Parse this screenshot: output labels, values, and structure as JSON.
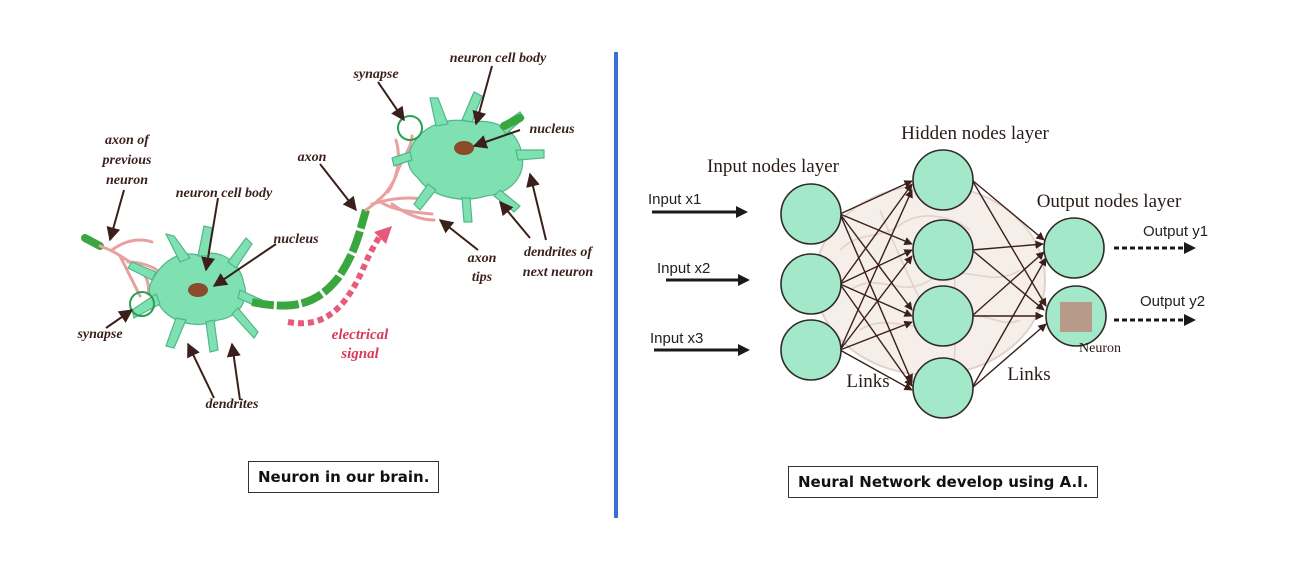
{
  "left_panel": {
    "caption": "Neuron in our brain.",
    "labels": {
      "axon_of_previous_1": "axon of",
      "axon_of_previous_2": "previous",
      "axon_of_previous_3": "neuron",
      "cell_body_left": "neuron cell body",
      "nucleus_left": "nucleus",
      "synapse_left": "synapse",
      "dendrites": "dendrites",
      "axon": "axon",
      "electrical_signal_1": "electrical",
      "electrical_signal_2": "signal",
      "synapse_top": "synapse",
      "cell_body_right": "neuron cell body",
      "nucleus_right": "nucleus",
      "axon_tips_1": "axon",
      "axon_tips_2": "tips",
      "dendrites_next_1": "dendrites of",
      "dendrites_next_2": "next neuron"
    }
  },
  "right_panel": {
    "caption": "Neural Network develop using A.I.",
    "layers": {
      "input": "Input nodes layer",
      "hidden": "Hidden nodes layer",
      "output": "Output nodes layer"
    },
    "inputs": [
      "Input x1",
      "Input x2",
      "Input x3"
    ],
    "outputs": [
      "Output y1",
      "Output y2"
    ],
    "links_left": "Links",
    "links_right": "Links",
    "neuron": "Neuron"
  },
  "colors": {
    "node_fill": "#a3e8c9",
    "node_stroke": "#2f2b28",
    "neuron_fill": "#7fe0b2",
    "axon_green": "#3aa63e",
    "signal_pink": "#e85a7a",
    "divider": "#3b6fd6",
    "neuron_square": "#b89a8a"
  }
}
